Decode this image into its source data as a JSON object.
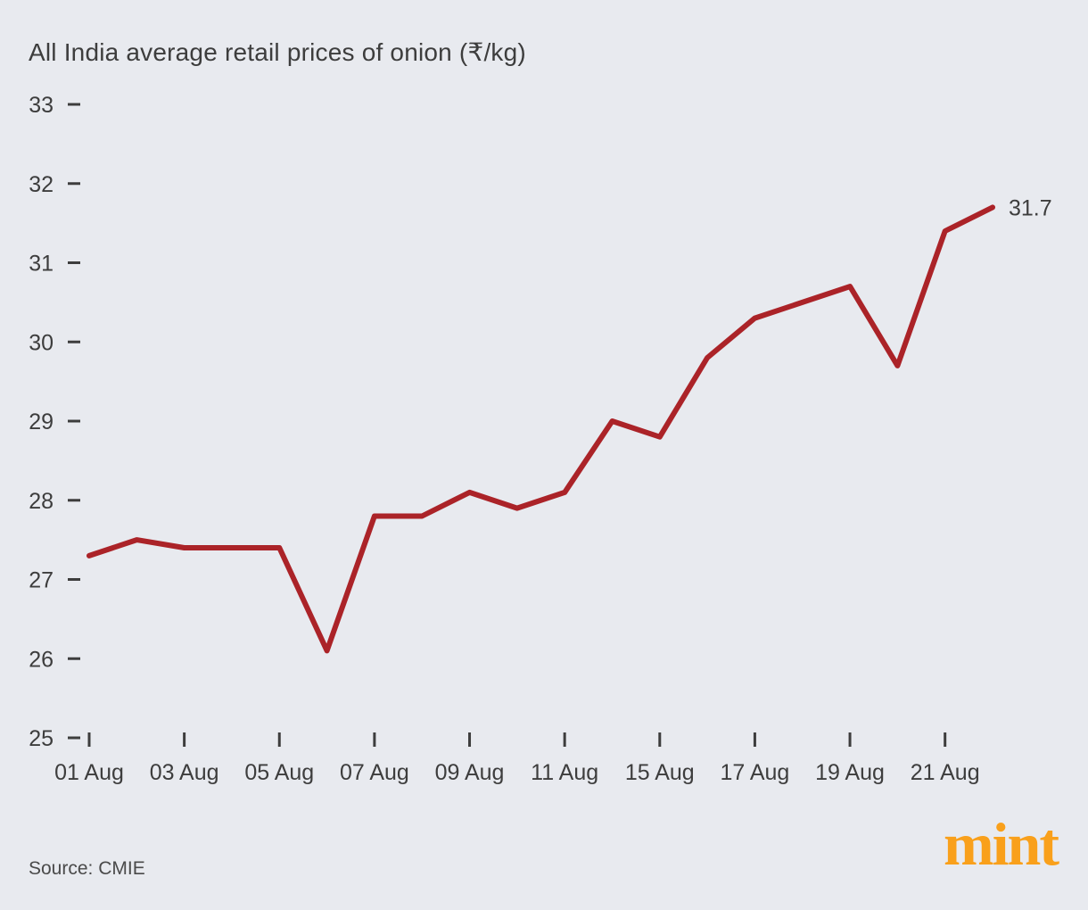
{
  "title": "All India average retail prices of onion (₹/kg)",
  "source": "Source: CMIE",
  "logo": "mint",
  "colors": {
    "background": "#e8eaef",
    "line": "#ab2328",
    "text": "#3d3d3d",
    "logo_orange": "#f9a01b"
  },
  "chart_data": {
    "type": "line",
    "x": [
      "01 Aug",
      "02 Aug",
      "03 Aug",
      "04 Aug",
      "05 Aug",
      "06 Aug",
      "07 Aug",
      "08 Aug",
      "09 Aug",
      "10 Aug",
      "11 Aug",
      "14 Aug",
      "15 Aug",
      "16 Aug",
      "17 Aug",
      "18 Aug",
      "19 Aug",
      "20 Aug",
      "21 Aug",
      "22 Aug"
    ],
    "values": [
      27.3,
      27.5,
      27.4,
      27.4,
      27.4,
      26.1,
      27.8,
      27.8,
      28.1,
      27.9,
      28.1,
      29.0,
      28.8,
      29.8,
      30.3,
      30.5,
      30.7,
      29.7,
      31.4,
      31.7
    ],
    "x_tick_labels": [
      "01 Aug",
      "03 Aug",
      "05 Aug",
      "07 Aug",
      "09 Aug",
      "11 Aug",
      "15 Aug",
      "17 Aug",
      "19 Aug",
      "21 Aug"
    ],
    "y_ticks": [
      25,
      26,
      27,
      28,
      29,
      30,
      31,
      32,
      33
    ],
    "ylim": [
      25,
      33
    ],
    "end_label": "31.7",
    "title": "All India average retail prices of onion (₹/kg)",
    "xlabel": "",
    "ylabel": "",
    "grid": false,
    "legend": "none",
    "line_color": "#ab2328",
    "line_width": 6
  }
}
